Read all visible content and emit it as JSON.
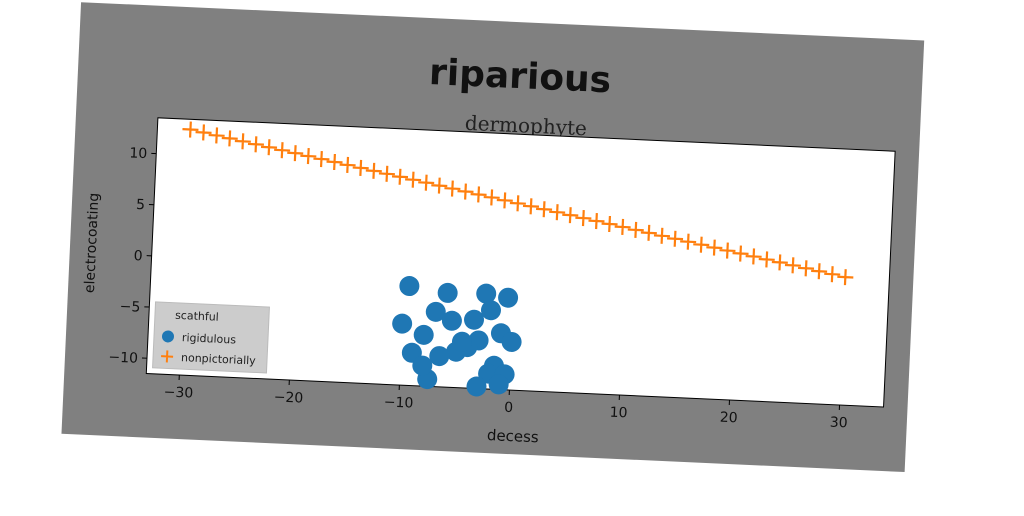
{
  "chart_data": {
    "type": "scatter",
    "title": "riparious",
    "subtitle": "dermophyte",
    "xlabel": "decess",
    "ylabel": "electrocoating",
    "xlim": [
      -33,
      34
    ],
    "ylim": [
      -11.5,
      13.5
    ],
    "x_ticks": [
      -30,
      -20,
      -10,
      0,
      10,
      20,
      30
    ],
    "y_ticks": [
      -10,
      -5,
      0,
      5,
      10
    ],
    "grid": false,
    "legend": {
      "title": "scathful",
      "position": "lower-left"
    },
    "series": [
      {
        "name": "rigidulous",
        "marker": "circle",
        "color": "#1f77b4",
        "x": [
          -9.5,
          -6,
          -2.5,
          -0.5,
          -7,
          -5.5,
          -3.5,
          -2,
          -10,
          -1,
          0,
          -8,
          -3,
          -5,
          -4,
          -6.5,
          -9,
          -1.5,
          -2,
          -7.5,
          -0.5,
          -3,
          -1,
          -4.5,
          -8
        ],
        "y": [
          -1.8,
          -2.3,
          -2.2,
          -2.5,
          -4.2,
          -5,
          -4.8,
          -3.8,
          -5.5,
          -6,
          -6.8,
          -6.5,
          -6.8,
          -8,
          -7.5,
          -8.5,
          -8.3,
          -9.2,
          -10,
          -10.8,
          -10,
          -11.3,
          -11,
          -7,
          -9.5
        ]
      },
      {
        "name": "nonpictorially",
        "marker": "plus",
        "color": "#ff7f0e",
        "x": [
          -30,
          -28.8,
          -27.6,
          -26.4,
          -25.2,
          -24,
          -22.8,
          -21.6,
          -20.4,
          -19.2,
          -18,
          -16.8,
          -15.6,
          -14.4,
          -13.2,
          -12,
          -10.8,
          -9.6,
          -8.4,
          -7.2,
          -6,
          -4.8,
          -3.6,
          -2.4,
          -1.2,
          0,
          1.2,
          2.4,
          3.6,
          4.8,
          6,
          7.2,
          8.4,
          9.6,
          10.8,
          12,
          13.2,
          14.4,
          15.6,
          16.8,
          18,
          19.2,
          20.4,
          21.6,
          22.8,
          24,
          25.2,
          26.4,
          27.6,
          28.8,
          30
        ],
        "y": [
          12.5,
          12.27,
          12.04,
          11.81,
          11.58,
          11.35,
          11.12,
          10.89,
          10.66,
          10.43,
          10.2,
          9.97,
          9.74,
          9.51,
          9.28,
          9.05,
          8.82,
          8.59,
          8.36,
          8.13,
          7.9,
          7.67,
          7.44,
          7.21,
          6.98,
          6.75,
          6.52,
          6.29,
          6.06,
          5.83,
          5.6,
          5.37,
          5.14,
          4.91,
          4.68,
          4.45,
          4.22,
          3.99,
          3.76,
          3.53,
          3.3,
          3.07,
          2.84,
          2.61,
          2.38,
          2.15,
          1.92,
          1.69,
          1.46,
          1.23,
          1.0
        ]
      }
    ]
  }
}
